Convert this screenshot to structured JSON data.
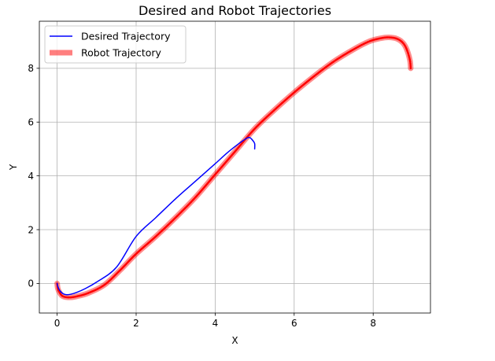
{
  "chart_data": {
    "type": "line",
    "title": "Desired and Robot Trajectories",
    "xlabel": "X",
    "ylabel": "Y",
    "xlim": [
      -0.45,
      9.45
    ],
    "ylim": [
      -1.1,
      9.75
    ],
    "xticks": [
      0,
      2,
      4,
      6,
      8
    ],
    "yticks": [
      0,
      2,
      4,
      6,
      8
    ],
    "grid": true,
    "legend_position": "upper-left",
    "series": [
      {
        "name": "Desired Trajectory",
        "color": "#0000ff",
        "style": "thin solid line",
        "points": [
          [
            0.0,
            0.0
          ],
          [
            0.02,
            -0.12
          ],
          [
            0.06,
            -0.25
          ],
          [
            0.12,
            -0.35
          ],
          [
            0.18,
            -0.4
          ],
          [
            0.25,
            -0.42
          ],
          [
            0.35,
            -0.4
          ],
          [
            0.5,
            -0.33
          ],
          [
            0.7,
            -0.2
          ],
          [
            1.0,
            0.05
          ],
          [
            1.5,
            0.6
          ],
          [
            2.0,
            1.75
          ],
          [
            2.5,
            2.45
          ],
          [
            3.0,
            3.15
          ],
          [
            3.5,
            3.8
          ],
          [
            4.0,
            4.45
          ],
          [
            4.3,
            4.85
          ],
          [
            4.6,
            5.2
          ],
          [
            4.8,
            5.4
          ],
          [
            4.88,
            5.42
          ],
          [
            4.95,
            5.32
          ],
          [
            5.0,
            5.2
          ],
          [
            5.0,
            5.0
          ]
        ]
      },
      {
        "name": "Robot Trajectory",
        "color": "#ff0000",
        "style": "thick solid line with translucent halo",
        "points": [
          [
            0.0,
            0.0
          ],
          [
            0.02,
            -0.2
          ],
          [
            0.08,
            -0.38
          ],
          [
            0.15,
            -0.48
          ],
          [
            0.3,
            -0.52
          ],
          [
            0.5,
            -0.48
          ],
          [
            0.8,
            -0.35
          ],
          [
            1.2,
            -0.05
          ],
          [
            1.6,
            0.5
          ],
          [
            2.0,
            1.1
          ],
          [
            2.5,
            1.75
          ],
          [
            3.0,
            2.45
          ],
          [
            3.5,
            3.2
          ],
          [
            4.0,
            4.05
          ],
          [
            4.5,
            4.9
          ],
          [
            5.0,
            5.75
          ],
          [
            5.5,
            6.45
          ],
          [
            6.0,
            7.1
          ],
          [
            6.5,
            7.7
          ],
          [
            7.0,
            8.25
          ],
          [
            7.5,
            8.7
          ],
          [
            7.9,
            9.0
          ],
          [
            8.2,
            9.12
          ],
          [
            8.4,
            9.15
          ],
          [
            8.6,
            9.1
          ],
          [
            8.75,
            8.95
          ],
          [
            8.85,
            8.7
          ],
          [
            8.93,
            8.3
          ],
          [
            8.95,
            8.0
          ]
        ]
      }
    ]
  }
}
